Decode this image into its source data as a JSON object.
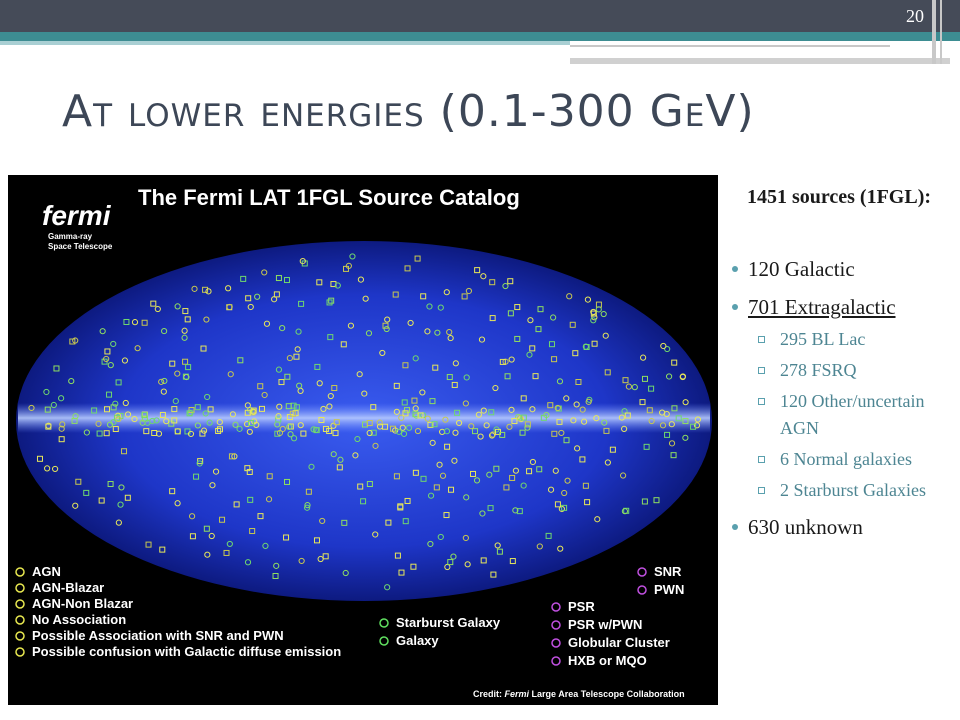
{
  "slide_number": "20",
  "title": "At lower energies (0.1-300 GeV)",
  "figure": {
    "title": "The Fermi LAT 1FGL Source Catalog",
    "logo": {
      "name": "fermi",
      "line1": "Gamma-ray",
      "line2": "Space Telescope"
    },
    "legend_left": [
      "AGN",
      "AGN-Blazar",
      "AGN-Non Blazar",
      "No Association",
      "Possible Association with SNR and PWN",
      "Possible confusion with Galactic diffuse emission"
    ],
    "legend_right_top": [
      "SNR",
      "PWN"
    ],
    "legend_middle": [
      "Starburst Galaxy",
      "Galaxy"
    ],
    "legend_right": [
      "PSR",
      "PSR w/PWN",
      "Globular Cluster",
      "HXB or MQO"
    ],
    "credit": {
      "prefix": "Credit:",
      "italic": "Fermi",
      "rest": "Large Area Telescope Collaboration"
    }
  },
  "heading": "1451 sources (1FGL):",
  "bullets": [
    {
      "text": "120 Galactic"
    },
    {
      "text": "701 Extragalactic",
      "sub": [
        "295 BL Lac",
        "278 FSRQ",
        "120 Other/uncertain AGN",
        "6 Normal galaxies",
        "2 Starburst Galaxies"
      ]
    },
    {
      "text": "630 unknown"
    }
  ]
}
